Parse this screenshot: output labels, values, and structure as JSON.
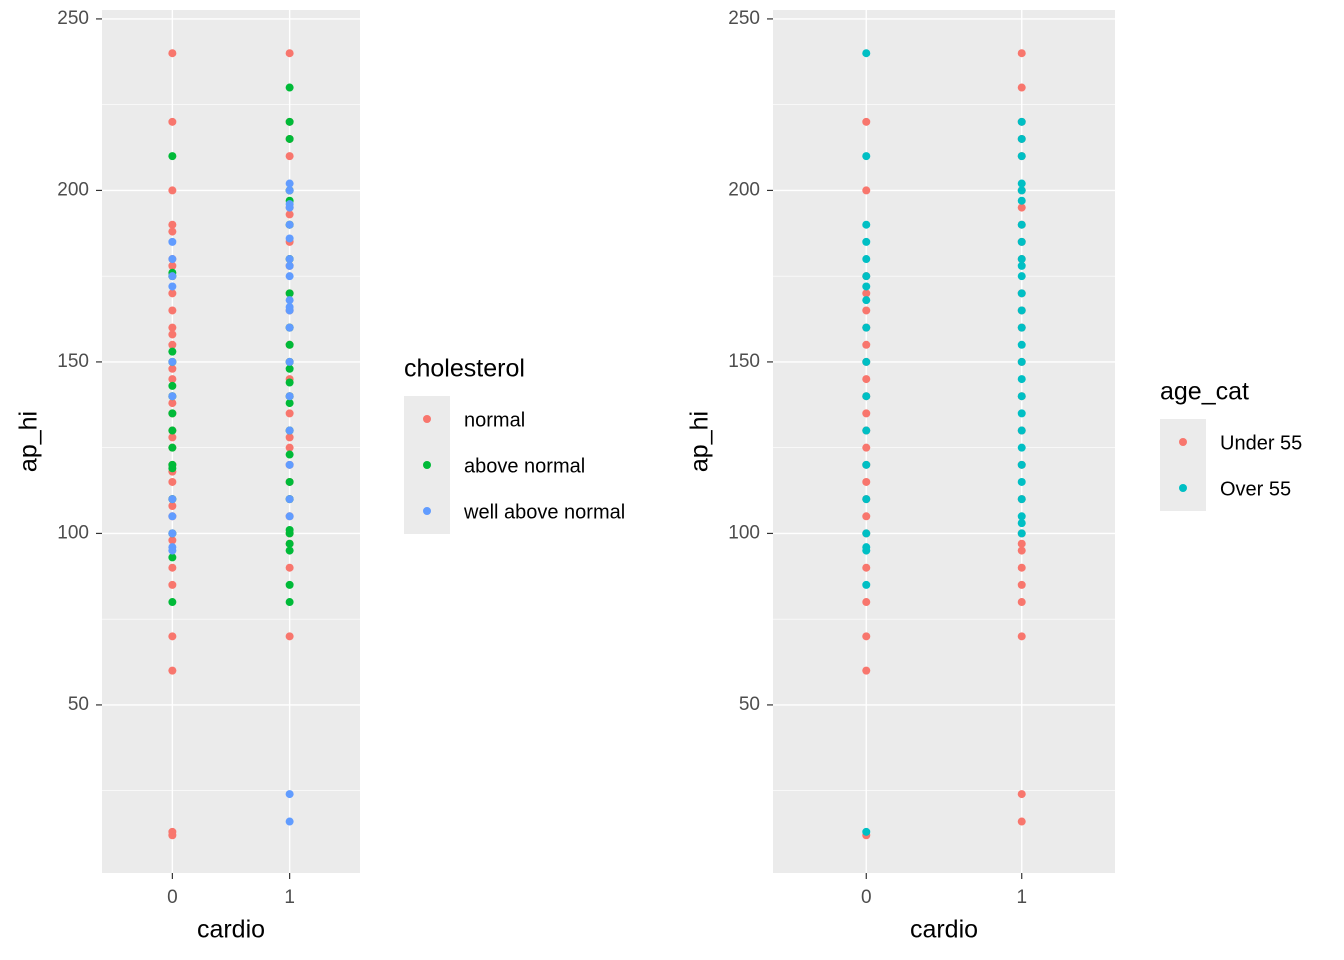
{
  "chart_data": [
    {
      "type": "scatter",
      "x_label": "cardio",
      "y_label": "ap_hi",
      "legend_title": "cholesterol",
      "legend": "right",
      "xlim": [
        -0.6,
        1.6
      ],
      "xticks": [
        0,
        1
      ],
      "ylim": [
        1,
        252.6
      ],
      "yticks": [
        50,
        100,
        150,
        200,
        250
      ],
      "minor_yticks": [
        25,
        75,
        125,
        175,
        225
      ],
      "grid": true,
      "series": [
        {
          "name": "normal",
          "color": "#F8766D",
          "x": [
            0,
            0,
            0,
            0,
            0,
            0,
            0,
            0,
            0,
            0,
            0,
            0,
            0,
            0,
            0,
            0,
            0,
            0,
            0,
            0,
            0,
            0,
            0,
            0,
            0,
            0,
            0,
            0,
            0,
            0,
            0,
            0,
            0,
            0,
            0,
            0,
            1,
            1,
            1,
            1,
            1,
            1,
            1,
            1,
            1,
            1,
            1,
            1,
            1,
            1,
            1,
            1,
            1,
            1,
            1,
            1,
            1,
            1,
            1,
            1,
            1,
            1,
            1,
            1,
            1,
            1
          ],
          "values": [
            240,
            220,
            200,
            190,
            188,
            180,
            178,
            175,
            170,
            165,
            160,
            158,
            155,
            150,
            148,
            145,
            140,
            138,
            135,
            130,
            128,
            125,
            120,
            118,
            115,
            110,
            108,
            105,
            100,
            98,
            90,
            85,
            70,
            60,
            13,
            12,
            240,
            220,
            215,
            210,
            200,
            195,
            193,
            190,
            185,
            180,
            178,
            170,
            165,
            160,
            155,
            150,
            145,
            140,
            135,
            130,
            128,
            125,
            120,
            115,
            110,
            105,
            100,
            97,
            90,
            70
          ]
        },
        {
          "name": "above normal",
          "color": "#00BA38",
          "x": [
            0,
            0,
            0,
            0,
            0,
            0,
            0,
            0,
            0,
            0,
            0,
            0,
            0,
            0,
            0,
            0,
            1,
            1,
            1,
            1,
            1,
            1,
            1,
            1,
            1,
            1,
            1,
            1,
            1,
            1,
            1,
            1,
            1,
            1,
            1,
            1,
            1,
            1,
            1,
            1,
            1
          ],
          "values": [
            210,
            176,
            175,
            153,
            150,
            143,
            140,
            135,
            130,
            125,
            120,
            119,
            110,
            100,
            93,
            80,
            230,
            220,
            215,
            200,
            197,
            190,
            180,
            170,
            160,
            155,
            150,
            148,
            144,
            140,
            138,
            130,
            123,
            115,
            110,
            101,
            100,
            97,
            95,
            85,
            80
          ]
        },
        {
          "name": "well above normal",
          "color": "#619CFF",
          "x": [
            0,
            0,
            0,
            0,
            0,
            0,
            0,
            0,
            0,
            0,
            0,
            1,
            1,
            1,
            1,
            1,
            1,
            1,
            1,
            1,
            1,
            1,
            1,
            1,
            1,
            1,
            1,
            1,
            1,
            1,
            1,
            1
          ],
          "values": [
            185,
            180,
            175,
            172,
            150,
            140,
            110,
            105,
            100,
            96,
            95,
            202,
            200,
            196,
            195,
            190,
            186,
            180,
            178,
            175,
            168,
            166,
            165,
            160,
            150,
            140,
            130,
            120,
            110,
            105,
            24,
            16
          ]
        }
      ]
    },
    {
      "type": "scatter",
      "x_label": "cardio",
      "y_label": "ap_hi",
      "legend_title": "age_cat",
      "legend": "right",
      "xlim": [
        -0.6,
        1.6
      ],
      "xticks": [
        0,
        1
      ],
      "ylim": [
        1,
        252.6
      ],
      "yticks": [
        50,
        100,
        150,
        200,
        250
      ],
      "minor_yticks": [
        25,
        75,
        125,
        175,
        225
      ],
      "grid": true,
      "series": [
        {
          "name": "Under 55",
          "color": "#F8766D",
          "x": [
            0,
            0,
            0,
            0,
            0,
            0,
            0,
            0,
            0,
            0,
            0,
            0,
            0,
            0,
            0,
            0,
            0,
            0,
            0,
            0,
            0,
            0,
            0,
            1,
            1,
            1,
            1,
            1,
            1,
            1,
            1,
            1,
            1,
            1,
            1,
            1,
            1,
            1,
            1,
            1,
            1,
            1,
            1,
            1,
            1,
            1,
            1,
            1,
            1,
            1
          ],
          "values": [
            220,
            200,
            175,
            170,
            165,
            160,
            155,
            150,
            145,
            140,
            135,
            130,
            125,
            120,
            115,
            110,
            105,
            100,
            90,
            80,
            70,
            60,
            12,
            240,
            230,
            220,
            215,
            210,
            200,
            195,
            190,
            185,
            180,
            170,
            165,
            160,
            150,
            140,
            130,
            120,
            110,
            100,
            97,
            95,
            90,
            85,
            80,
            70,
            24,
            16
          ]
        },
        {
          "name": "Over 55",
          "color": "#00BFC4",
          "x": [
            0,
            0,
            0,
            0,
            0,
            0,
            0,
            0,
            0,
            0,
            0,
            0,
            0,
            0,
            0,
            0,
            0,
            0,
            0,
            1,
            1,
            1,
            1,
            1,
            1,
            1,
            1,
            1,
            1,
            1,
            1,
            1,
            1,
            1,
            1,
            1,
            1,
            1,
            1,
            1,
            1,
            1,
            1,
            1,
            1,
            1
          ],
          "values": [
            240,
            210,
            190,
            185,
            180,
            175,
            172,
            168,
            160,
            150,
            140,
            130,
            120,
            110,
            100,
            96,
            95,
            85,
            13,
            220,
            215,
            210,
            202,
            200,
            197,
            190,
            185,
            180,
            178,
            175,
            170,
            165,
            160,
            155,
            150,
            145,
            140,
            135,
            130,
            125,
            120,
            115,
            110,
            105,
            103,
            100
          ]
        }
      ]
    }
  ]
}
